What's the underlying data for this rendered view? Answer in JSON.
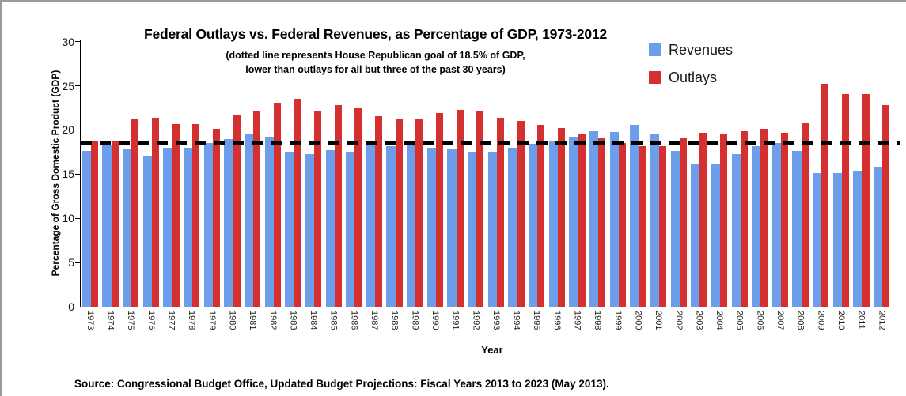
{
  "chart_data": {
    "type": "bar",
    "title": "Federal Outlays vs. Federal Revenues, as Percentage of GDP, 1973-2012",
    "subtitle_line1": "(dotted line represents House Republican goal of 18.5% of GDP,",
    "subtitle_line2": "lower than outlays for all but three of the past 30 years)",
    "xlabel": "Year",
    "ylabel": "Percentage of Gross Domestic Product (GDP)",
    "ylim": [
      0,
      30
    ],
    "yticks": [
      0,
      5,
      10,
      15,
      20,
      25,
      30
    ],
    "grid": false,
    "legend_position": "top-right",
    "goal_line_value": 18.5,
    "categories": [
      "1973",
      "1974",
      "1975",
      "1976",
      "1977",
      "1978",
      "1979",
      "1980",
      "1981",
      "1982",
      "1983",
      "1984",
      "1985",
      "1986",
      "1987",
      "1988",
      "1989",
      "1990",
      "1991",
      "1992",
      "1993",
      "1994",
      "1995",
      "1996",
      "1997",
      "1998",
      "1999",
      "2000",
      "2001",
      "2002",
      "2003",
      "2004",
      "2005",
      "2006",
      "2007",
      "2008",
      "2009",
      "2010",
      "2011",
      "2012"
    ],
    "series": [
      {
        "name": "Revenues",
        "color": "#6d9eeb",
        "values": [
          17.6,
          18.3,
          17.9,
          17.1,
          18.0,
          18.0,
          18.5,
          19.0,
          19.6,
          19.2,
          17.5,
          17.3,
          17.7,
          17.5,
          18.4,
          18.2,
          18.4,
          18.0,
          17.8,
          17.5,
          17.5,
          18.0,
          18.4,
          18.8,
          19.2,
          19.9,
          19.8,
          20.6,
          19.5,
          17.6,
          16.2,
          16.1,
          17.3,
          18.2,
          18.5,
          17.6,
          15.1,
          15.1,
          15.4,
          15.8
        ]
      },
      {
        "name": "Outlays",
        "color": "#d53030",
        "values": [
          18.7,
          18.7,
          21.3,
          21.4,
          20.7,
          20.7,
          20.1,
          21.7,
          22.2,
          23.1,
          23.5,
          22.2,
          22.8,
          22.5,
          21.6,
          21.3,
          21.2,
          21.9,
          22.3,
          22.1,
          21.4,
          21.0,
          20.6,
          20.2,
          19.5,
          19.1,
          18.5,
          18.2,
          18.2,
          19.1,
          19.7,
          19.6,
          19.9,
          20.1,
          19.7,
          20.8,
          25.2,
          24.1,
          24.1,
          22.8
        ]
      }
    ],
    "goal_line_color": "#000000"
  },
  "source_note": "Source: Congressional Budget Office, Updated Budget Projections: Fiscal Years 2013 to 2023 (May 2013)."
}
